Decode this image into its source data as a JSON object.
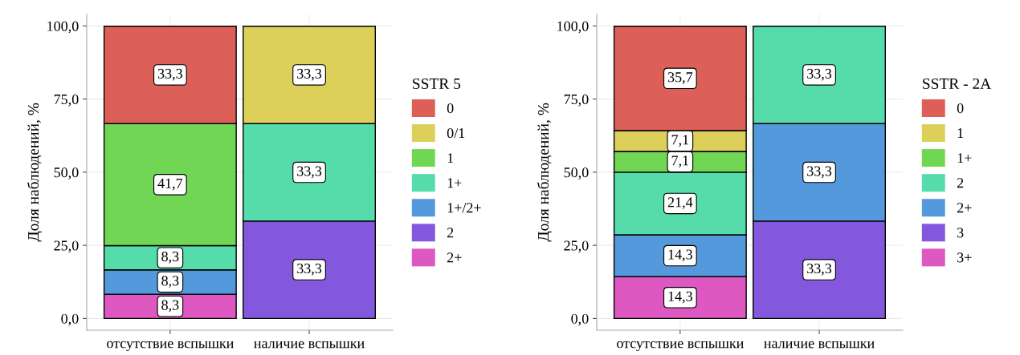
{
  "chart_data": [
    {
      "type": "bar",
      "stacked": true,
      "ylabel": "Доля наблюдений, %",
      "legend_title": "SSTR 5",
      "legend": "right",
      "grid": true,
      "categories": [
        "отсутствие вспышки",
        "наличие вспышки"
      ],
      "ylim": [
        -4,
        104
      ],
      "yticks": [
        {
          "value": 0,
          "label": "0,0"
        },
        {
          "value": 25,
          "label": "25,0"
        },
        {
          "value": 50,
          "label": "50,0"
        },
        {
          "value": 75,
          "label": "75,0"
        },
        {
          "value": 100,
          "label": "100,0"
        }
      ],
      "series": [
        {
          "name": "2+",
          "color": "#dd58c0",
          "values": [
            8.3,
            null
          ],
          "value_labels": [
            "8,3",
            null
          ]
        },
        {
          "name": "2",
          "color": "#8458dd",
          "values": [
            null,
            33.3
          ],
          "value_labels": [
            null,
            "33,3"
          ]
        },
        {
          "name": "1+/2+",
          "color": "#5599dd",
          "values": [
            8.3,
            null
          ],
          "value_labels": [
            "8,3",
            null
          ]
        },
        {
          "name": "1+",
          "color": "#55dcaa",
          "values": [
            8.3,
            33.3
          ],
          "value_labels": [
            "8,3",
            "33,3"
          ]
        },
        {
          "name": "1",
          "color": "#72d655",
          "values": [
            41.7,
            null
          ],
          "value_labels": [
            "41,7",
            null
          ]
        },
        {
          "name": "0/1",
          "color": "#dccf5a",
          "values": [
            null,
            33.3
          ],
          "value_labels": [
            null,
            "33,3"
          ]
        },
        {
          "name": "0",
          "color": "#dd6058",
          "values": [
            33.3,
            null
          ],
          "value_labels": [
            "33,3",
            null
          ]
        }
      ]
    },
    {
      "type": "bar",
      "stacked": true,
      "ylabel": "Доля наблюдений, %",
      "legend_title": "SSTR - 2A",
      "legend": "right",
      "grid": true,
      "categories": [
        "отсутствие вспышки",
        "наличие вспышки"
      ],
      "ylim": [
        -4,
        104
      ],
      "yticks": [
        {
          "value": 0,
          "label": "0,0"
        },
        {
          "value": 25,
          "label": "25,0"
        },
        {
          "value": 50,
          "label": "50,0"
        },
        {
          "value": 75,
          "label": "75,0"
        },
        {
          "value": 100,
          "label": "100,0"
        }
      ],
      "series": [
        {
          "name": "3+",
          "color": "#dd58c0",
          "values": [
            14.3,
            null
          ],
          "value_labels": [
            "14,3",
            null
          ]
        },
        {
          "name": "3",
          "color": "#8458dd",
          "values": [
            null,
            33.3
          ],
          "value_labels": [
            null,
            "33,3"
          ]
        },
        {
          "name": "2+",
          "color": "#5599dd",
          "values": [
            14.3,
            33.3
          ],
          "value_labels": [
            "14,3",
            "33,3"
          ]
        },
        {
          "name": "2",
          "color": "#55dcaa",
          "values": [
            21.4,
            33.3
          ],
          "value_labels": [
            "21,4",
            "33,3"
          ]
        },
        {
          "name": "1+",
          "color": "#72d655",
          "values": [
            7.1,
            null
          ],
          "value_labels": [
            "7,1",
            null
          ]
        },
        {
          "name": "1",
          "color": "#dccf5a",
          "values": [
            7.1,
            null
          ],
          "value_labels": [
            "7,1",
            null
          ]
        },
        {
          "name": "0",
          "color": "#dd6058",
          "values": [
            35.7,
            null
          ],
          "value_labels": [
            "35,7",
            null
          ]
        }
      ]
    }
  ]
}
